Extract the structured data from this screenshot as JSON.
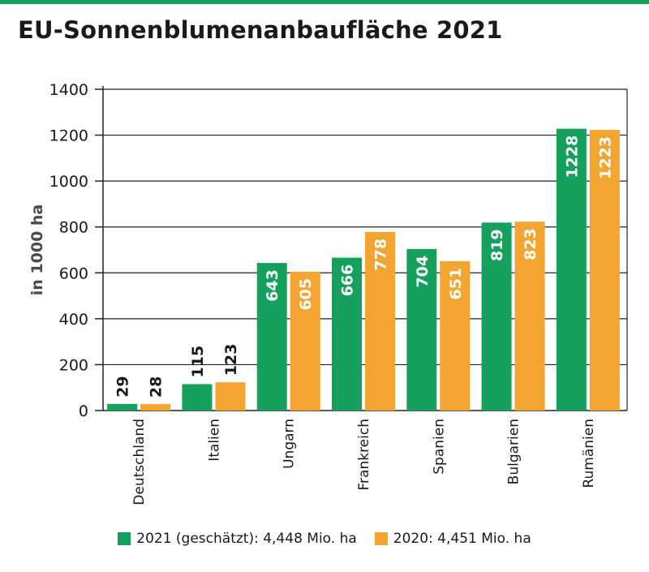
{
  "title": "EU-Sonnenblumenanbaufläche 2021",
  "colors": {
    "accent": "#16a05d",
    "series_2021": "#16a05d",
    "series_2020": "#f3a431"
  },
  "legend": [
    {
      "label": "2021 (geschätzt): 4,448 Mio. ha",
      "color": "#16a05d"
    },
    {
      "label": "2020: 4,451 Mio. ha",
      "color": "#f3a431"
    }
  ],
  "chart_data": {
    "type": "bar",
    "title": "EU-Sonnenblumenanbaufläche 2021",
    "xlabel": "",
    "ylabel": "in 1000 ha",
    "ylim": [
      0,
      1400
    ],
    "yticks": [
      0,
      200,
      400,
      600,
      800,
      1000,
      1200,
      1400
    ],
    "grid": true,
    "legend_position": "bottom",
    "categories": [
      "Deutschland",
      "Italien",
      "Ungarn",
      "Frankreich",
      "Spanien",
      "Bulgarien",
      "Rumänien"
    ],
    "series": [
      {
        "name": "2021 (geschätzt): 4,448 Mio. ha",
        "color": "#16a05d",
        "values": [
          29,
          115,
          643,
          666,
          704,
          819,
          1228
        ]
      },
      {
        "name": "2020: 4,451 Mio. ha",
        "color": "#f3a431",
        "values": [
          28,
          123,
          605,
          778,
          651,
          823,
          1223
        ]
      }
    ]
  }
}
